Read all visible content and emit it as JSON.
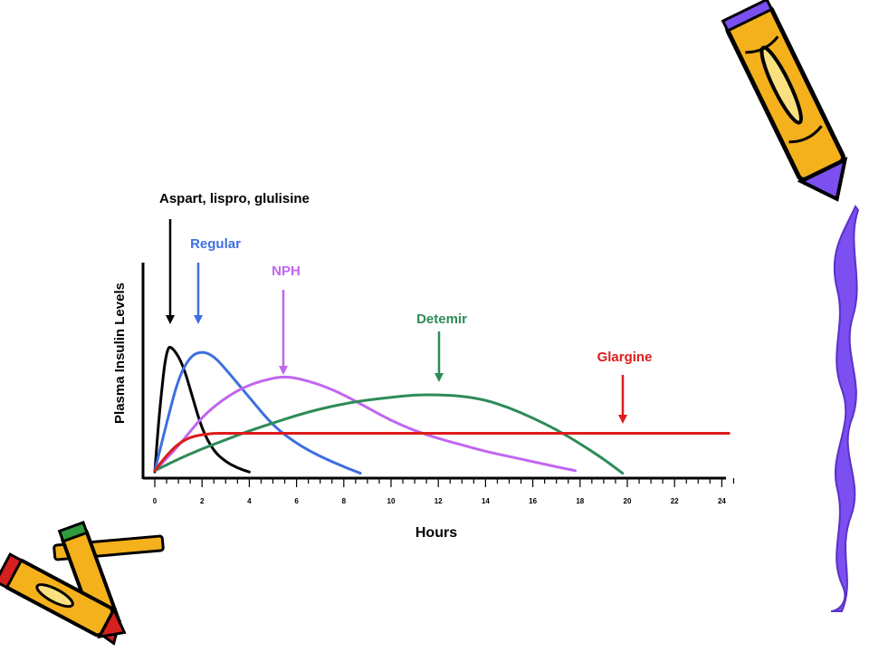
{
  "decor": {
    "icons": [
      "pencil-top-right-icon",
      "pencils-bottom-left-icon",
      "wavy-border-right-icon"
    ],
    "accent_purple": "#7b4ff0",
    "pencil_yellow": "#f4b11c"
  },
  "chart_data": {
    "type": "line",
    "title": "",
    "xlabel": "Hours",
    "ylabel": "Plasma Insulin Levels",
    "xlim": [
      0,
      24
    ],
    "ylim": [
      0,
      100
    ],
    "x_ticks": [
      "0",
      "2",
      "4",
      "6",
      "8",
      "10",
      "12",
      "14",
      "16",
      "18",
      "20",
      "22",
      "24"
    ],
    "grid": false,
    "legend": "none",
    "series": [
      {
        "name": "Aspart, lispro, glulisine",
        "color": "#000000",
        "annotation_x": 0.6,
        "annotation_label_y": 98,
        "points": [
          [
            0,
            2
          ],
          [
            0.2,
            50
          ],
          [
            0.5,
            100
          ],
          [
            0.8,
            98
          ],
          [
            1.2,
            85
          ],
          [
            1.6,
            60
          ],
          [
            2,
            35
          ],
          [
            2.5,
            18
          ],
          [
            3,
            10
          ],
          [
            3.5,
            5
          ],
          [
            4,
            2
          ]
        ]
      },
      {
        "name": "Regular",
        "color": "#3d6fe0",
        "annotation_x": 1.8,
        "annotation_label_y": 82,
        "points": [
          [
            0,
            3
          ],
          [
            0.5,
            40
          ],
          [
            1,
            75
          ],
          [
            1.5,
            92
          ],
          [
            2,
            96
          ],
          [
            2.5,
            92
          ],
          [
            3,
            82
          ],
          [
            4,
            60
          ],
          [
            5,
            38
          ],
          [
            6,
            24
          ],
          [
            7,
            14
          ],
          [
            8,
            6
          ],
          [
            8.7,
            1
          ]
        ]
      },
      {
        "name": "NPH",
        "color": "#c066f0",
        "annotation_x": 5.4,
        "annotation_label_y": 70,
        "points": [
          [
            0,
            3
          ],
          [
            1,
            22
          ],
          [
            2,
            45
          ],
          [
            3,
            60
          ],
          [
            4,
            70
          ],
          [
            5,
            75
          ],
          [
            5.5,
            76
          ],
          [
            6,
            75
          ],
          [
            7,
            70
          ],
          [
            8,
            62
          ],
          [
            9,
            52
          ],
          [
            10,
            42
          ],
          [
            11,
            34
          ],
          [
            12,
            28
          ],
          [
            13,
            23
          ],
          [
            14,
            18
          ],
          [
            15,
            14
          ],
          [
            16,
            10
          ],
          [
            17,
            6
          ],
          [
            17.8,
            3
          ]
        ]
      },
      {
        "name": "Detemir",
        "color": "#2e8b57",
        "annotation_x": 12,
        "annotation_label_y": 58,
        "points": [
          [
            0,
            3
          ],
          [
            1,
            12
          ],
          [
            2,
            20
          ],
          [
            3,
            27
          ],
          [
            4,
            34
          ],
          [
            5,
            40
          ],
          [
            6,
            46
          ],
          [
            7,
            51
          ],
          [
            8,
            55
          ],
          [
            9,
            58
          ],
          [
            10,
            60
          ],
          [
            11,
            62
          ],
          [
            12,
            62
          ],
          [
            13,
            61
          ],
          [
            14,
            58
          ],
          [
            15,
            52
          ],
          [
            16,
            44
          ],
          [
            17,
            35
          ],
          [
            18,
            24
          ],
          [
            19,
            12
          ],
          [
            19.8,
            1
          ]
        ]
      },
      {
        "name": "Glargine",
        "color": "#dd1c1c",
        "annotation_x": 19.9,
        "annotation_label_y": 42,
        "points": [
          [
            0,
            3
          ],
          [
            0.5,
            15
          ],
          [
            1,
            24
          ],
          [
            1.5,
            29
          ],
          [
            2,
            31
          ],
          [
            2.5,
            32
          ],
          [
            3,
            32
          ],
          [
            4,
            32
          ],
          [
            10,
            32
          ],
          [
            16,
            32
          ],
          [
            20,
            32
          ],
          [
            24.3,
            32
          ]
        ]
      }
    ]
  }
}
